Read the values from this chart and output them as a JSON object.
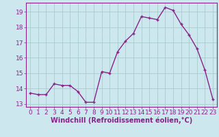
{
  "x": [
    0,
    1,
    2,
    3,
    4,
    5,
    6,
    7,
    8,
    9,
    10,
    11,
    12,
    13,
    14,
    15,
    16,
    17,
    18,
    19,
    20,
    21,
    22,
    23
  ],
  "y": [
    13.7,
    13.6,
    13.6,
    14.3,
    14.2,
    14.2,
    13.8,
    13.1,
    13.1,
    15.1,
    15.0,
    16.4,
    17.1,
    17.6,
    18.7,
    18.6,
    18.5,
    19.3,
    19.1,
    18.2,
    17.5,
    16.6,
    15.2,
    13.3
  ],
  "line_color": "#882288",
  "marker": "+",
  "bg_color": "#cce8ee",
  "grid_color": "#aacccc",
  "xlabel": "Windchill (Refroidissement éolien,°C)",
  "ylim": [
    12.8,
    19.6
  ],
  "xlim": [
    -0.5,
    23.5
  ],
  "yticks": [
    13,
    14,
    15,
    16,
    17,
    18,
    19
  ],
  "xticks": [
    0,
    1,
    2,
    3,
    4,
    5,
    6,
    7,
    8,
    9,
    10,
    11,
    12,
    13,
    14,
    15,
    16,
    17,
    18,
    19,
    20,
    21,
    22,
    23
  ],
  "tick_fontsize": 6.5,
  "xlabel_fontsize": 7,
  "line_width": 1.0,
  "marker_size": 3
}
